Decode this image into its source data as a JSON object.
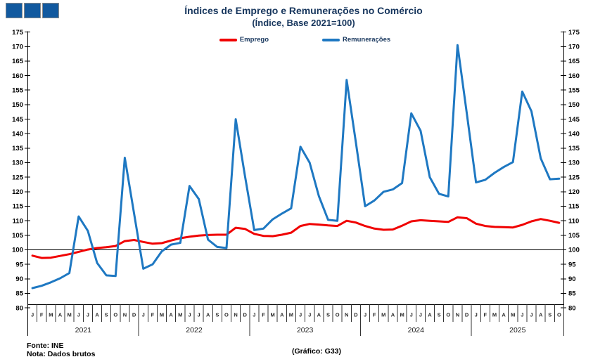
{
  "logo": {
    "square_color": "#11599F",
    "border_color": "#8a8a8a"
  },
  "title": "Índices de Emprego e Remunerações no Comércio",
  "subtitle": "(Índice, Base 2021=100)",
  "legend": [
    {
      "label": "Emprego",
      "color": "#F00000"
    },
    {
      "label": "Remunerações",
      "color": "#1E78C2"
    }
  ],
  "footer": {
    "source": "Fonte: INE",
    "note": "Nota: Dados brutos",
    "chart_ref": "(Gráfico: G33)"
  },
  "chart_data": {
    "type": "line",
    "title": "Índices de Emprego e Remunerações no Comércio",
    "subtitle": "(Índice, Base 2021=100)",
    "ylim": [
      80,
      175
    ],
    "yticks": [
      80,
      85,
      90,
      95,
      100,
      105,
      110,
      115,
      120,
      125,
      130,
      135,
      140,
      145,
      150,
      155,
      160,
      165,
      170,
      175
    ],
    "baseline": 100,
    "grid": false,
    "legend_position": "top",
    "month_letters": [
      "J",
      "F",
      "M",
      "A",
      "M",
      "J",
      "J",
      "A",
      "S",
      "O",
      "N",
      "D"
    ],
    "years": [
      {
        "label": "2021",
        "months": 12
      },
      {
        "label": "2022",
        "months": 12
      },
      {
        "label": "2023",
        "months": 12
      },
      {
        "label": "2024",
        "months": 12
      },
      {
        "label": "2025",
        "months": 10
      }
    ],
    "series": [
      {
        "name": "Emprego",
        "color": "#F00000",
        "values": [
          98,
          97.2,
          97.3,
          97.9,
          98.5,
          99.3,
          100.1,
          100.6,
          100.9,
          101.3,
          103,
          103.4,
          102.7,
          102.1,
          102.3,
          103.2,
          104,
          104.5,
          104.9,
          105.1,
          105.2,
          105.2,
          107.6,
          107.2,
          105.5,
          104.8,
          104.7,
          105.2,
          105.9,
          108.2,
          108.9,
          108.7,
          108.4,
          108.2,
          110,
          109.4,
          108.2,
          107.3,
          106.9,
          107,
          108.3,
          109.8,
          110.2,
          110,
          109.8,
          109.6,
          111.2,
          110.9,
          109,
          108.2,
          107.9,
          107.8,
          107.7,
          108.6,
          109.8,
          110.6,
          110,
          109.3
        ]
      },
      {
        "name": "Remunerações",
        "color": "#1E78C2",
        "values": [
          86.8,
          87.6,
          88.8,
          90.2,
          92,
          111.5,
          106.5,
          95.5,
          91.2,
          91,
          131.7,
          112.5,
          93.5,
          95,
          99.5,
          101.8,
          102.4,
          122,
          117.5,
          103.5,
          101,
          100.6,
          145,
          125.5,
          106.8,
          107.3,
          110.5,
          112.5,
          114.3,
          135.5,
          130,
          118.5,
          110.3,
          110,
          158.5,
          137,
          115,
          117,
          120,
          120.8,
          123,
          147,
          141,
          125,
          119.3,
          118.4,
          170.5,
          147,
          123.2,
          124.1,
          126.5,
          128.5,
          130.2,
          154.5,
          147.7,
          131.5,
          124.3,
          124.5
        ]
      }
    ]
  }
}
